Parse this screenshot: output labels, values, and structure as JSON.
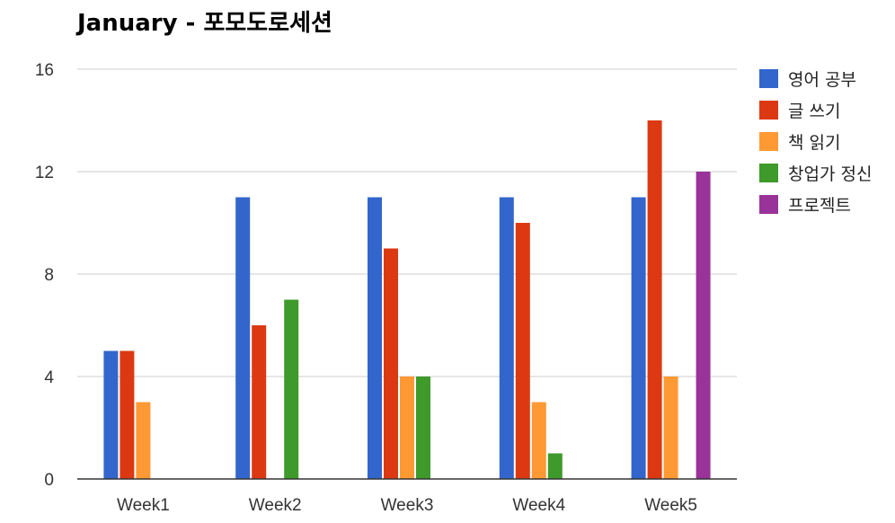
{
  "chart_data": {
    "type": "bar",
    "title": "January - 포모도로세션",
    "xlabel": "",
    "ylabel": "",
    "categories": [
      "Week1",
      "Week2",
      "Week3",
      "Week4",
      "Week5"
    ],
    "series": [
      {
        "name": "영어 공부",
        "color": "#3366cc",
        "values": [
          5,
          11,
          11,
          11,
          11
        ]
      },
      {
        "name": "글 쓰기",
        "color": "#dc3912",
        "values": [
          5,
          6,
          9,
          10,
          14
        ]
      },
      {
        "name": "책 읽기",
        "color": "#ff9933",
        "values": [
          3,
          0,
          4,
          3,
          4
        ]
      },
      {
        "name": "창업가 정신",
        "color": "#3e9a2a",
        "values": [
          0,
          7,
          4,
          1,
          0
        ]
      },
      {
        "name": "프로젝트",
        "color": "#993399",
        "values": [
          0,
          0,
          0,
          0,
          12
        ]
      }
    ],
    "ylim": [
      0,
      16
    ],
    "yticks": [
      0,
      4,
      8,
      12,
      16
    ],
    "grid": true,
    "legend_position": "right"
  }
}
